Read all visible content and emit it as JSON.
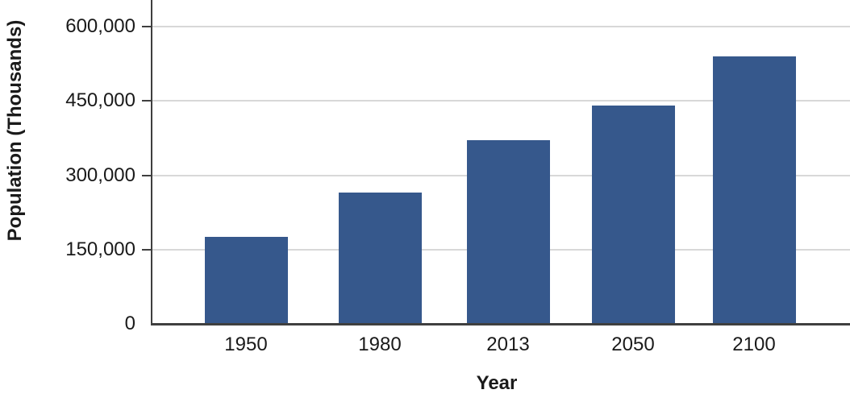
{
  "chart_data": {
    "type": "bar",
    "categories": [
      "1950",
      "1980",
      "2013",
      "2050",
      "2100"
    ],
    "values": [
      175000,
      265000,
      370000,
      440000,
      540000
    ],
    "title": "",
    "xlabel": "Year",
    "ylabel": "Population (Thousands)",
    "ylim": [
      0,
      600000
    ],
    "yticks": [
      0,
      150000,
      300000,
      450000,
      600000
    ],
    "ytick_labels": [
      "0",
      "150,000",
      "300,000",
      "450,000",
      "600,000"
    ],
    "grid": true,
    "legend": false,
    "colors": {
      "bar_fill": "#36588C",
      "axis": "#3F3F3F",
      "gridline": "#D8D8D8",
      "text": "#1A1A1A",
      "background": "#FFFFFF"
    }
  }
}
